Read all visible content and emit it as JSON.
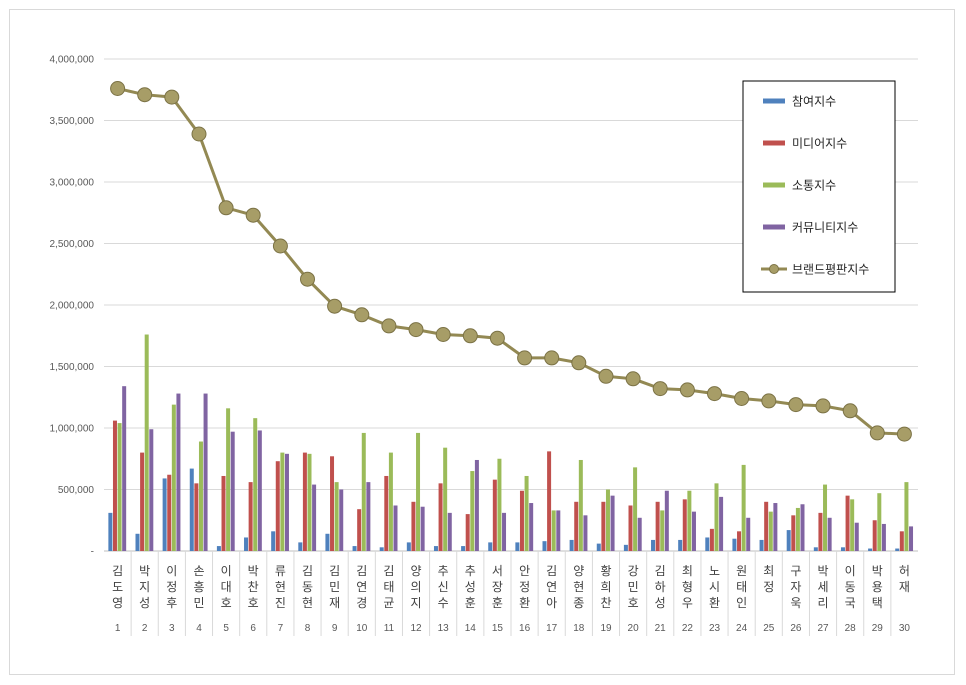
{
  "chart_data": {
    "type": "bar",
    "y_ticks": [
      "-",
      "500,000",
      "1,000,000",
      "1,500,000",
      "2,000,000",
      "2,500,000",
      "3,000,000",
      "3,500,000",
      "4,000,000"
    ],
    "ylim": [
      0,
      4000000
    ],
    "grid": true,
    "legend_position": "right",
    "categories": [
      {
        "name": "김도영",
        "rank": "1"
      },
      {
        "name": "박지성",
        "rank": "2"
      },
      {
        "name": "이정후",
        "rank": "3"
      },
      {
        "name": "손흥민",
        "rank": "4"
      },
      {
        "name": "이대호",
        "rank": "5"
      },
      {
        "name": "박찬호",
        "rank": "6"
      },
      {
        "name": "류현진",
        "rank": "7"
      },
      {
        "name": "김동현",
        "rank": "8"
      },
      {
        "name": "김민재",
        "rank": "9"
      },
      {
        "name": "김연경",
        "rank": "10"
      },
      {
        "name": "김태균",
        "rank": "11"
      },
      {
        "name": "양의지",
        "rank": "12"
      },
      {
        "name": "추신수",
        "rank": "13"
      },
      {
        "name": "추성훈",
        "rank": "14"
      },
      {
        "name": "서장훈",
        "rank": "15"
      },
      {
        "name": "안정환",
        "rank": "16"
      },
      {
        "name": "김연아",
        "rank": "17"
      },
      {
        "name": "양현종",
        "rank": "18"
      },
      {
        "name": "황희찬",
        "rank": "19"
      },
      {
        "name": "강민호",
        "rank": "20"
      },
      {
        "name": "김하성",
        "rank": "21"
      },
      {
        "name": "최형우",
        "rank": "22"
      },
      {
        "name": "노시환",
        "rank": "23"
      },
      {
        "name": "원태인",
        "rank": "24"
      },
      {
        "name": "최정",
        "rank": "25"
      },
      {
        "name": "구자욱",
        "rank": "26"
      },
      {
        "name": "박세리",
        "rank": "27"
      },
      {
        "name": "이동국",
        "rank": "28"
      },
      {
        "name": "박용택",
        "rank": "29"
      },
      {
        "name": "허재",
        "rank": "30"
      }
    ],
    "series": [
      {
        "name": "참여지수",
        "type": "bar",
        "color": "#4f81bd",
        "values": [
          310000,
          140000,
          590000,
          670000,
          40000,
          110000,
          160000,
          70000,
          140000,
          40000,
          30000,
          70000,
          40000,
          40000,
          70000,
          70000,
          80000,
          90000,
          60000,
          50000,
          90000,
          90000,
          110000,
          100000,
          90000,
          170000,
          30000,
          30000,
          20000,
          20000
        ]
      },
      {
        "name": "미디어지수",
        "type": "bar",
        "color": "#c0504d",
        "values": [
          1060000,
          800000,
          620000,
          550000,
          610000,
          560000,
          730000,
          800000,
          770000,
          340000,
          610000,
          400000,
          550000,
          300000,
          580000,
          490000,
          810000,
          400000,
          400000,
          370000,
          400000,
          420000,
          180000,
          160000,
          400000,
          290000,
          310000,
          450000,
          250000,
          160000
        ]
      },
      {
        "name": "소통지수",
        "type": "bar",
        "color": "#9bbb59",
        "values": [
          1040000,
          1760000,
          1190000,
          890000,
          1160000,
          1080000,
          800000,
          790000,
          560000,
          960000,
          800000,
          960000,
          840000,
          650000,
          750000,
          610000,
          330000,
          740000,
          500000,
          680000,
          330000,
          490000,
          550000,
          700000,
          320000,
          350000,
          540000,
          420000,
          470000,
          560000
        ]
      },
      {
        "name": "커뮤니티지수",
        "type": "bar",
        "color": "#8064a2",
        "values": [
          1340000,
          990000,
          1280000,
          1280000,
          970000,
          980000,
          790000,
          540000,
          500000,
          560000,
          370000,
          360000,
          310000,
          740000,
          310000,
          390000,
          330000,
          290000,
          450000,
          270000,
          490000,
          320000,
          440000,
          270000,
          390000,
          380000,
          270000,
          230000,
          220000,
          200000
        ]
      },
      {
        "name": "브랜드평판지수",
        "type": "line",
        "color": "#938953",
        "values": [
          3760000,
          3710000,
          3690000,
          3390000,
          2790000,
          2730000,
          2480000,
          2210000,
          1990000,
          1920000,
          1830000,
          1800000,
          1760000,
          1750000,
          1730000,
          1570000,
          1570000,
          1530000,
          1420000,
          1400000,
          1320000,
          1310000,
          1280000,
          1240000,
          1220000,
          1190000,
          1180000,
          1140000,
          960000,
          950000
        ]
      }
    ]
  }
}
